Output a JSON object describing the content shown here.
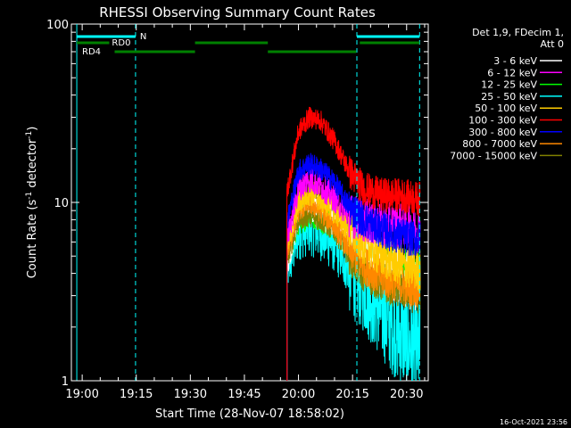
{
  "chart_data": {
    "type": "line",
    "title": "RHESSI Observing Summary Count Rates",
    "xlabel": "Start Time (28-Nov-07 18:58:02)",
    "ylabel": "Count Rate (s⁻¹ detector⁻¹)",
    "ylabel_main": "Count Rate (s",
    "ylabel_mid": " detector",
    "ylabel_end": ")",
    "ylabel_sup": "-1",
    "y_scale": "log",
    "ylim": [
      1,
      100
    ],
    "xlim_minutes": [
      -3,
      96
    ],
    "x_tick_labels": [
      {
        "label": "19:00",
        "t": 0
      },
      {
        "label": "19:15",
        "t": 15
      },
      {
        "label": "19:30",
        "t": 30
      },
      {
        "label": "19:45",
        "t": 45
      },
      {
        "label": "20:00",
        "t": 60
      },
      {
        "label": "20:15",
        "t": 75
      },
      {
        "label": "20:30",
        "t": 90
      }
    ],
    "y_tick_labels": [
      {
        "label": "1",
        "v": 1
      },
      {
        "label": "10",
        "v": 10
      },
      {
        "label": "100",
        "v": 100
      }
    ],
    "legend_title_lines": [
      "Det 1,9, FDecim 1,",
      "Att 0"
    ],
    "series": [
      {
        "name": "3 - 6 keV",
        "color": "#ffffff",
        "shape": [
          [
            57,
            5
          ],
          [
            60,
            9
          ],
          [
            63,
            10
          ],
          [
            66,
            9
          ],
          [
            70,
            8
          ],
          [
            74,
            6
          ],
          [
            78,
            5.5
          ],
          [
            83,
            4.5
          ],
          [
            88,
            4
          ],
          [
            93,
            3.5
          ]
        ],
        "noise": 0.25
      },
      {
        "name": "6 - 12 keV",
        "color": "#ff00ff",
        "shape": [
          [
            57,
            6.5
          ],
          [
            60,
            12
          ],
          [
            63,
            13.5
          ],
          [
            66,
            12.5
          ],
          [
            70,
            10.5
          ],
          [
            74,
            8.5
          ],
          [
            78,
            8
          ],
          [
            83,
            7.5
          ],
          [
            88,
            7.5
          ],
          [
            93,
            7
          ]
        ],
        "noise": 0.18
      },
      {
        "name": "12 - 25 keV",
        "color": "#00ff00",
        "shape": [
          [
            57,
            5
          ],
          [
            60,
            8
          ],
          [
            63,
            9
          ],
          [
            66,
            8.5
          ],
          [
            70,
            7.5
          ],
          [
            74,
            6
          ],
          [
            78,
            5
          ],
          [
            83,
            4.5
          ],
          [
            88,
            4
          ],
          [
            93,
            4
          ]
        ],
        "noise": 0.22
      },
      {
        "name": "25 - 50 keV",
        "color": "#00ffff",
        "shape": [
          [
            57,
            4.5
          ],
          [
            60,
            7
          ],
          [
            63,
            7.5
          ],
          [
            66,
            7
          ],
          [
            70,
            6
          ],
          [
            74,
            4.5
          ],
          [
            78,
            3.5
          ],
          [
            83,
            2.5
          ],
          [
            88,
            1.8
          ],
          [
            93,
            1.5
          ]
        ],
        "noise": 0.4
      },
      {
        "name": "50 - 100 keV",
        "color": "#ffcc00",
        "shape": [
          [
            57,
            6
          ],
          [
            60,
            10
          ],
          [
            63,
            11.5
          ],
          [
            66,
            10.5
          ],
          [
            70,
            9
          ],
          [
            74,
            7
          ],
          [
            78,
            6
          ],
          [
            83,
            5
          ],
          [
            88,
            4.5
          ],
          [
            93,
            4.2
          ]
        ],
        "noise": 0.18
      },
      {
        "name": "100 - 300 keV",
        "color": "#ff0000",
        "shape": [
          [
            57,
            12
          ],
          [
            60,
            25
          ],
          [
            63,
            30
          ],
          [
            66,
            29
          ],
          [
            70,
            22
          ],
          [
            74,
            15
          ],
          [
            78,
            12
          ],
          [
            83,
            11
          ],
          [
            88,
            11
          ],
          [
            93,
            10.5
          ]
        ],
        "noise": 0.14
      },
      {
        "name": "300 - 800 keV",
        "color": "#0000ff",
        "shape": [
          [
            57,
            8
          ],
          [
            60,
            15
          ],
          [
            63,
            16.5
          ],
          [
            66,
            15.5
          ],
          [
            70,
            13
          ],
          [
            74,
            9.5
          ],
          [
            78,
            8
          ],
          [
            83,
            7
          ],
          [
            88,
            6.5
          ],
          [
            93,
            6.2
          ]
        ],
        "noise": 0.15
      },
      {
        "name": "800 - 7000 keV",
        "color": "#ff8800",
        "shape": [
          [
            57,
            5.5
          ],
          [
            60,
            9
          ],
          [
            63,
            10
          ],
          [
            66,
            9
          ],
          [
            70,
            7.5
          ],
          [
            74,
            5.5
          ],
          [
            78,
            4.5
          ],
          [
            83,
            3.8
          ],
          [
            88,
            3.5
          ],
          [
            93,
            3.3
          ]
        ],
        "noise": 0.16
      },
      {
        "name": "7000 - 15000 keV",
        "color": "#808000",
        "shape": [
          [
            57,
            5
          ],
          [
            60,
            8
          ],
          [
            63,
            8.5
          ],
          [
            66,
            8
          ],
          [
            70,
            7
          ],
          [
            74,
            5
          ],
          [
            78,
            4
          ],
          [
            83,
            3.5
          ],
          [
            88,
            3.2
          ],
          [
            93,
            3.0
          ]
        ],
        "noise": 0.15
      }
    ],
    "flare_start_minutes": 56.8,
    "data_end_minutes": 93.8,
    "markers": {
      "cyan_lines_minutes": [
        -1.5,
        14.8,
        76.2,
        93.6
      ],
      "night_label": "N",
      "night_bars": [
        [
          -1.5,
          14.8
        ],
        [
          76.2,
          93.6
        ]
      ],
      "rd0_label": "RD0",
      "rd0_bars": [
        [
          -1.5,
          7.5
        ],
        [
          31.3,
          51.5
        ],
        [
          77.0,
          93.6
        ]
      ],
      "rd4_label": "RD4",
      "rd4_bars": [
        [
          9.0,
          31.3
        ],
        [
          51.5,
          76.0
        ]
      ]
    },
    "timestamp": "16-Oct-2021 23:56"
  }
}
